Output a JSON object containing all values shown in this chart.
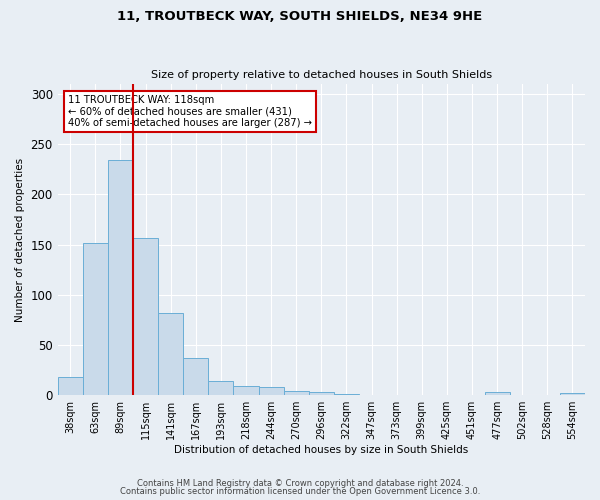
{
  "title1": "11, TROUTBECK WAY, SOUTH SHIELDS, NE34 9HE",
  "title2": "Size of property relative to detached houses in South Shields",
  "xlabel": "Distribution of detached houses by size in South Shields",
  "ylabel": "Number of detached properties",
  "categories": [
    "38sqm",
    "63sqm",
    "89sqm",
    "115sqm",
    "141sqm",
    "167sqm",
    "193sqm",
    "218sqm",
    "244sqm",
    "270sqm",
    "296sqm",
    "322sqm",
    "347sqm",
    "373sqm",
    "399sqm",
    "425sqm",
    "451sqm",
    "477sqm",
    "502sqm",
    "528sqm",
    "554sqm"
  ],
  "values": [
    18,
    152,
    234,
    157,
    82,
    37,
    14,
    9,
    8,
    4,
    3,
    1,
    0,
    0,
    0,
    0,
    0,
    3,
    0,
    0,
    2
  ],
  "bar_color": "#c9daea",
  "bar_edge_color": "#6aaed6",
  "vline_color": "#cc0000",
  "annotation_line1": "11 TROUTBECK WAY: 118sqm",
  "annotation_line2": "← 60% of detached houses are smaller (431)",
  "annotation_line3": "40% of semi-detached houses are larger (287) →",
  "annotation_box_color": "#cc0000",
  "background_color": "#e8eef4",
  "grid_color": "#ffffff",
  "ylim": [
    0,
    310
  ],
  "yticks": [
    0,
    50,
    100,
    150,
    200,
    250,
    300
  ],
  "footer1": "Contains HM Land Registry data © Crown copyright and database right 2024.",
  "footer2": "Contains public sector information licensed under the Open Government Licence 3.0."
}
